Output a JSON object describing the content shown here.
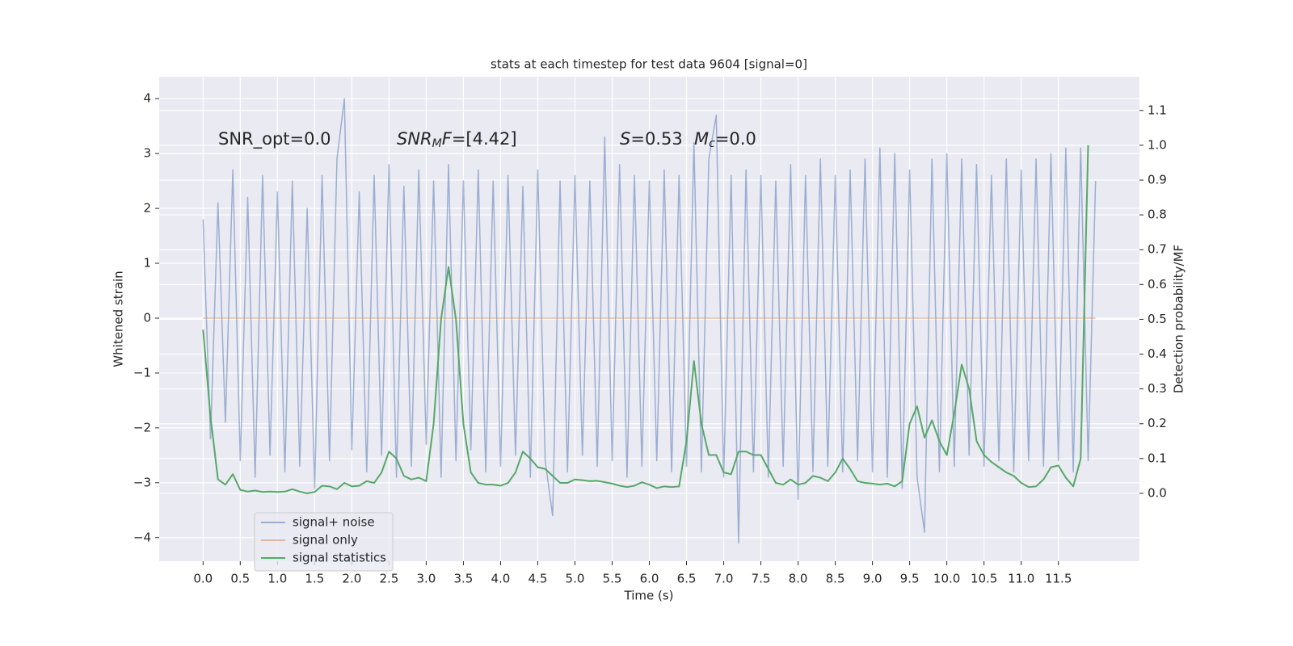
{
  "chart_data": {
    "type": "line",
    "title": "stats at each timestep for test data 9604 [signal=0]",
    "xlabel": "Time (s)",
    "ylabel": "Whitened strain",
    "y2label": "Detection probability/MF",
    "x": [
      0.0,
      0.1,
      0.2,
      0.3,
      0.4,
      0.5,
      0.6,
      0.7,
      0.8,
      0.9,
      1.0,
      1.1,
      1.2,
      1.3,
      1.4,
      1.5,
      1.6,
      1.7,
      1.8,
      1.9,
      2.0,
      2.1,
      2.2,
      2.3,
      2.4,
      2.5,
      2.6,
      2.7,
      2.8,
      2.9,
      3.0,
      3.1,
      3.2,
      3.3,
      3.4,
      3.5,
      3.6,
      3.7,
      3.8,
      3.9,
      4.0,
      4.1,
      4.2,
      4.3,
      4.4,
      4.5,
      4.6,
      4.7,
      4.8,
      4.9,
      5.0,
      5.1,
      5.2,
      5.3,
      5.4,
      5.5,
      5.6,
      5.7,
      5.8,
      5.9,
      6.0,
      6.1,
      6.2,
      6.3,
      6.4,
      6.5,
      6.6,
      6.7,
      6.8,
      6.9,
      7.0,
      7.1,
      7.2,
      7.3,
      7.4,
      7.5,
      7.6,
      7.7,
      7.8,
      7.9,
      8.0,
      8.1,
      8.2,
      8.3,
      8.4,
      8.5,
      8.6,
      8.7,
      8.8,
      8.9,
      9.0,
      9.1,
      9.2,
      9.3,
      9.4,
      9.5,
      9.6,
      9.7,
      9.8,
      9.9,
      10.0,
      10.1,
      10.2,
      10.3,
      10.4,
      10.5,
      10.6,
      10.7,
      10.8,
      10.9,
      11.0,
      11.1,
      11.2,
      11.3,
      11.4,
      11.5,
      11.6,
      11.7,
      11.8,
      11.9,
      12.0
    ],
    "series": [
      {
        "name": "signal+ noise",
        "color": "#4c72b0",
        "alpha": 0.5,
        "values": [
          1.8,
          -2.2,
          2.1,
          -1.9,
          2.7,
          -2.6,
          2.2,
          -2.9,
          2.6,
          -2.5,
          2.3,
          -2.8,
          2.5,
          -2.7,
          2.0,
          -3.1,
          2.6,
          -2.6,
          2.9,
          4.0,
          -2.4,
          2.3,
          -2.8,
          2.6,
          -2.5,
          2.8,
          -2.9,
          2.4,
          -2.7,
          2.7,
          -2.3,
          2.5,
          -2.9,
          2.8,
          -2.6,
          2.5,
          -2.4,
          2.7,
          -2.8,
          2.5,
          -2.7,
          2.6,
          -2.5,
          2.4,
          -2.9,
          2.7,
          -2.6,
          -3.6,
          2.5,
          -2.8,
          2.6,
          -2.5,
          2.5,
          -2.7,
          3.3,
          -2.6,
          2.8,
          -2.9,
          2.6,
          -2.7,
          2.5,
          -2.6,
          2.7,
          -2.8,
          2.6,
          -2.7,
          3.2,
          -2.8,
          2.9,
          3.7,
          -2.9,
          2.6,
          -4.1,
          2.7,
          -2.8,
          2.6,
          -2.9,
          2.5,
          -2.7,
          2.8,
          -3.3,
          2.6,
          -2.8,
          2.9,
          -2.7,
          2.6,
          -2.8,
          2.7,
          -2.6,
          2.9,
          -2.8,
          3.1,
          -2.9,
          3.0,
          -3.1,
          2.7,
          -2.9,
          -3.9,
          2.9,
          -2.8,
          3.0,
          -2.7,
          2.9,
          -2.5,
          2.8,
          -2.7,
          2.6,
          -2.6,
          2.9,
          -2.8,
          2.7,
          -2.6,
          2.9,
          -2.7,
          3.0,
          -2.6,
          3.1,
          -2.8,
          3.1,
          -2.6,
          2.5
        ]
      },
      {
        "name": "signal only",
        "color": "#dd8452",
        "alpha": 0.5,
        "values": [
          0,
          0,
          0,
          0,
          0,
          0,
          0,
          0,
          0,
          0,
          0,
          0,
          0,
          0,
          0,
          0,
          0,
          0,
          0,
          0,
          0,
          0,
          0,
          0,
          0,
          0,
          0,
          0,
          0,
          0,
          0,
          0,
          0,
          0,
          0,
          0,
          0,
          0,
          0,
          0,
          0,
          0,
          0,
          0,
          0,
          0,
          0,
          0,
          0,
          0,
          0,
          0,
          0,
          0,
          0,
          0,
          0,
          0,
          0,
          0,
          0,
          0,
          0,
          0,
          0,
          0,
          0,
          0,
          0,
          0,
          0,
          0,
          0,
          0,
          0,
          0,
          0,
          0,
          0,
          0,
          0,
          0,
          0,
          0,
          0,
          0,
          0,
          0,
          0,
          0,
          0,
          0,
          0,
          0,
          0,
          0,
          0,
          0,
          0,
          0,
          0,
          0,
          0,
          0,
          0,
          0,
          0,
          0,
          0,
          0,
          0,
          0,
          0,
          0,
          0,
          0,
          0,
          0,
          0,
          0,
          0
        ]
      },
      {
        "name": "signal statistics",
        "color": "#55a868",
        "alpha": 1,
        "axis": "y2",
        "values": [
          0.47,
          0.22,
          0.04,
          0.025,
          0.055,
          0.01,
          0.005,
          0.008,
          0.004,
          0.005,
          0.004,
          0.005,
          0.012,
          0.005,
          0.0,
          0.004,
          0.022,
          0.02,
          0.012,
          0.03,
          0.02,
          0.022,
          0.035,
          0.03,
          0.06,
          0.12,
          0.1,
          0.05,
          0.04,
          0.045,
          0.035,
          0.2,
          0.5,
          0.65,
          0.5,
          0.2,
          0.06,
          0.03,
          0.025,
          0.025,
          0.022,
          0.03,
          0.06,
          0.12,
          0.1,
          0.075,
          0.07,
          0.05,
          0.03,
          0.03,
          0.04,
          0.038,
          0.035,
          0.036,
          0.032,
          0.028,
          0.022,
          0.018,
          0.022,
          0.032,
          0.025,
          0.015,
          0.02,
          0.018,
          0.02,
          0.15,
          0.38,
          0.2,
          0.11,
          0.11,
          0.06,
          0.055,
          0.12,
          0.12,
          0.11,
          0.11,
          0.07,
          0.03,
          0.025,
          0.04,
          0.025,
          0.03,
          0.05,
          0.045,
          0.035,
          0.06,
          0.1,
          0.07,
          0.035,
          0.03,
          0.028,
          0.025,
          0.028,
          0.02,
          0.035,
          0.2,
          0.25,
          0.16,
          0.21,
          0.15,
          0.11,
          0.23,
          0.37,
          0.3,
          0.15,
          0.11,
          0.09,
          0.075,
          0.06,
          0.05,
          0.03,
          0.018,
          0.02,
          0.04,
          0.075,
          0.08,
          0.045,
          0.02,
          0.1,
          1.0,
          null
        ]
      }
    ],
    "xlim": [
      -0.59,
      12.59
    ],
    "ylim": [
      -4.43,
      4.4
    ],
    "y2lim": [
      -0.195,
      1.197
    ],
    "xticks": [
      {
        "value": 0,
        "label": "0.0"
      },
      {
        "value": 0.5,
        "label": "0.5"
      },
      {
        "value": 1,
        "label": "1.0"
      },
      {
        "value": 1.5,
        "label": "1.5"
      },
      {
        "value": 2,
        "label": "2.0"
      },
      {
        "value": 2.5,
        "label": "2.5"
      },
      {
        "value": 3,
        "label": "3.0"
      },
      {
        "value": 3.5,
        "label": "3.5"
      },
      {
        "value": 4,
        "label": "4.0"
      },
      {
        "value": 4.5,
        "label": "4.5"
      },
      {
        "value": 5,
        "label": "5.0"
      },
      {
        "value": 5.5,
        "label": "5.5"
      },
      {
        "value": 6,
        "label": "6.0"
      },
      {
        "value": 6.5,
        "label": "6.5"
      },
      {
        "value": 7,
        "label": "7.0"
      },
      {
        "value": 7.5,
        "label": "7.5"
      },
      {
        "value": 8,
        "label": "8.0"
      },
      {
        "value": 8.5,
        "label": "8.5"
      },
      {
        "value": 9,
        "label": "9.0"
      },
      {
        "value": 9.5,
        "label": "9.5"
      },
      {
        "value": 10,
        "label": "10.0"
      },
      {
        "value": 10.5,
        "label": "10.5"
      },
      {
        "value": 11,
        "label": "11.0"
      },
      {
        "value": 11.5,
        "label": "11.5"
      }
    ],
    "yticks": [
      {
        "value": -4,
        "label": "−4"
      },
      {
        "value": -3,
        "label": "−3"
      },
      {
        "value": -2,
        "label": "−2"
      },
      {
        "value": -1,
        "label": "−1"
      },
      0,
      1,
      2,
      3,
      4
    ],
    "y2ticks": [
      {
        "value": 0,
        "label": "0.0"
      },
      {
        "value": 0.1,
        "label": "0.1"
      },
      {
        "value": 0.2,
        "label": "0.2"
      },
      {
        "value": 0.3,
        "label": "0.3"
      },
      {
        "value": 0.4,
        "label": "0.4"
      },
      {
        "value": 0.5,
        "label": "0.5"
      },
      {
        "value": 0.6,
        "label": "0.6"
      },
      {
        "value": 0.7,
        "label": "0.7"
      },
      {
        "value": 0.8,
        "label": "0.8"
      },
      {
        "value": 0.9,
        "label": "0.9"
      },
      {
        "value": 1,
        "label": "1.0"
      },
      {
        "value": 1.1,
        "label": "1.1"
      }
    ],
    "grid": true,
    "legend": "lower left",
    "annotations": [
      [
        {
          "text": "SNR_opt=0.0",
          "style": "normal"
        }
      ],
      [
        {
          "text": "SNR",
          "style": "italic"
        },
        {
          "text": "M",
          "style": "sub"
        },
        {
          "text": "F",
          "style": "italic"
        },
        {
          "text": "=[4.42]",
          "style": "normal"
        }
      ],
      [
        {
          "text": "S",
          "style": "italic"
        },
        {
          "text": "=0.53",
          "style": "normal"
        }
      ],
      [
        {
          "text": "M",
          "style": "italic"
        },
        {
          "text": "c",
          "style": "sub"
        },
        {
          "text": "=0.0",
          "style": "normal"
        }
      ]
    ]
  }
}
